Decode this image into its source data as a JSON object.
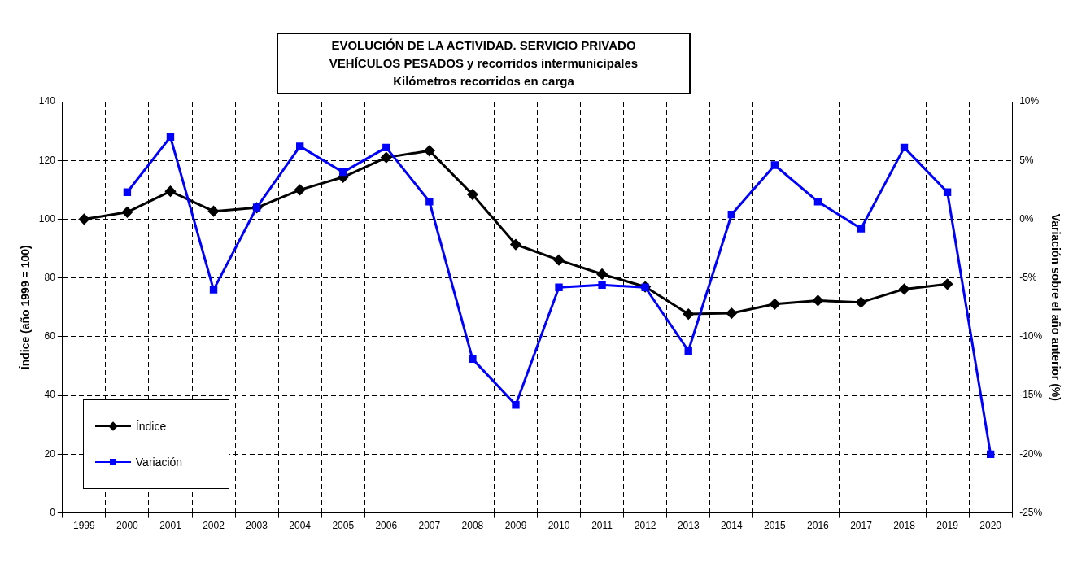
{
  "chart_data": {
    "type": "line",
    "title": "EVOLUCIÓN DE LA ACTIVIDAD. SERVICIO PRIVADO\nVEHÍCULOS PESADOS y recorridos intermunicipales\nKilómetros recorridos en carga",
    "ylabel": "Índice (año 1999 = 100)",
    "y2label": "Variación sobre el año anterior (%)",
    "categories": [
      "1999",
      "2000",
      "2001",
      "2002",
      "2003",
      "2004",
      "2005",
      "2006",
      "2007",
      "2008",
      "2009",
      "2010",
      "2011",
      "2012",
      "2013",
      "2014",
      "2015",
      "2016",
      "2017",
      "2018",
      "2019",
      "2020"
    ],
    "series": [
      {
        "name": "Índice",
        "color": "#000000",
        "marker": "diamond",
        "values": [
          100,
          102.4,
          109.5,
          102.7,
          103.9,
          110,
          114.3,
          121,
          123.3,
          108.4,
          91.4,
          86.1,
          81.3,
          77,
          67.7,
          68,
          71.1,
          72.3,
          71.7,
          76.2,
          77.9,
          null
        ]
      },
      {
        "name": "Variación",
        "color": "#0000ff",
        "marker": "square",
        "axis": "y2",
        "values": [
          null,
          2.3,
          7.0,
          -6.0,
          1.0,
          6.2,
          4.0,
          6.1,
          1.5,
          -11.9,
          -15.8,
          -5.8,
          -5.6,
          -5.8,
          -11.2,
          0.4,
          4.6,
          1.5,
          -0.8,
          6.1,
          2.3,
          -20
        ]
      }
    ],
    "ylim": [
      0,
      140
    ],
    "yticks": [
      0,
      20,
      40,
      60,
      80,
      100,
      120,
      140
    ],
    "y2lim": [
      -25,
      10
    ],
    "y2ticks": [
      {
        "value": -25,
        "label": "-25%"
      },
      {
        "value": -20,
        "label": "-20%"
      },
      {
        "value": -15,
        "label": "-15%"
      },
      {
        "value": -10,
        "label": "-10%"
      },
      {
        "value": -5,
        "label": "-5%"
      },
      {
        "value": 0,
        "label": "0%"
      },
      {
        "value": 5,
        "label": "5%"
      },
      {
        "value": 10,
        "label": "10%"
      }
    ],
    "grid": true,
    "legend": "bottom left",
    "line_style": "solid"
  }
}
